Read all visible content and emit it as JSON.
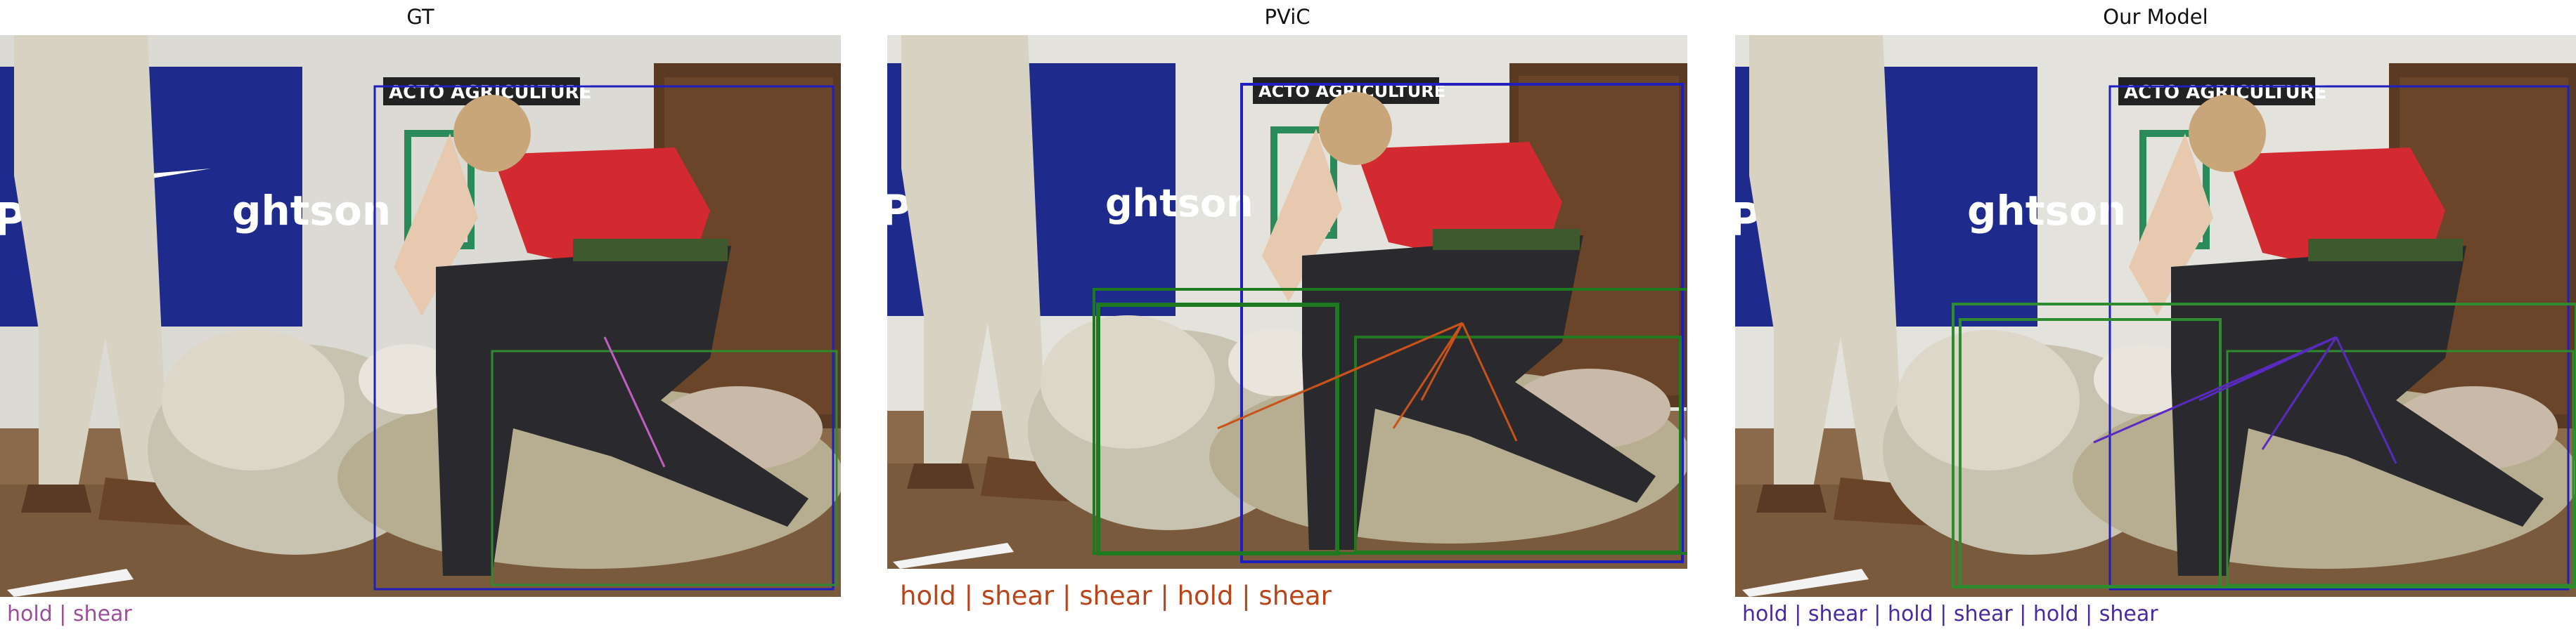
{
  "panels": [
    {
      "title": "GT",
      "caption": "hold | shear",
      "caption_color": "#9b4f9b",
      "box_colors": {
        "person": "#1f1fbf",
        "object": "#2e8b2e"
      },
      "relation_color": "#c05fc0"
    },
    {
      "title": "PViC",
      "caption": "hold | shear | shear | hold | shear",
      "caption_color": "#b8451a",
      "box_colors": {
        "person": "#1f1fbf",
        "object": "#1f7a1f"
      },
      "relation_color": "#c8521a"
    },
    {
      "title": "Our Model",
      "caption": "hold | shear | hold | shear | hold | shear",
      "caption_color": "#4a2aa0",
      "box_colors": {
        "person": "#1f1fbf",
        "object": "#2e8b2e"
      },
      "relation_color": "#5a2ac0"
    }
  ],
  "image_content": {
    "poster_text_1": "ACTO AGRICULTURE",
    "poster_text_2": "PG",
    "poster_text_3": "ghtson"
  }
}
